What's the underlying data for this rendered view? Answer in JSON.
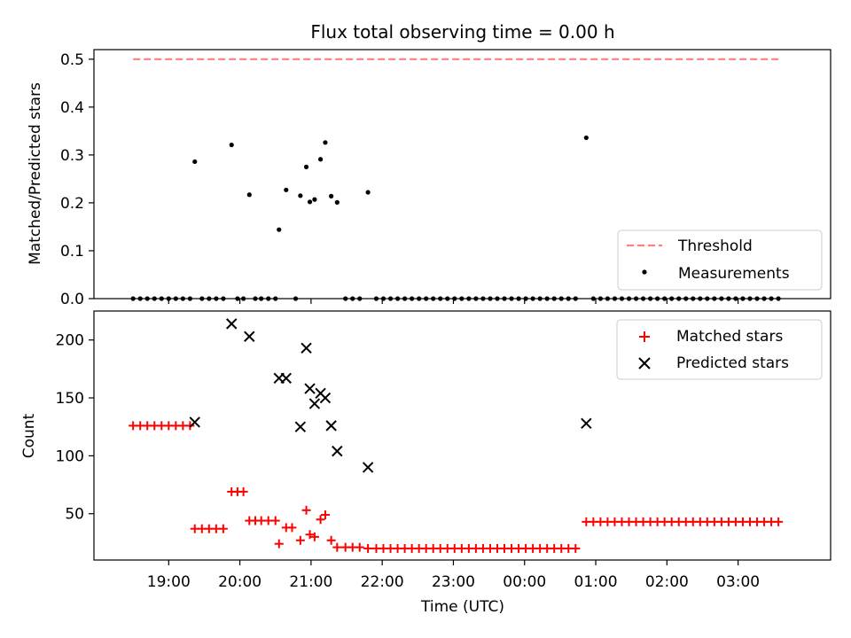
{
  "figure": {
    "title": "Flux total observing time = 0.00 h"
  },
  "chart_data": [
    {
      "type": "scatter",
      "panel": "top",
      "ylabel": "Matched/Predicted stars",
      "xlim_hours": [
        17.95,
        28.3
      ],
      "ylim": [
        0,
        0.52
      ],
      "yticks": [
        0.0,
        0.1,
        0.2,
        0.3,
        0.4,
        0.5
      ],
      "ytick_labels": [
        "0.0",
        "0.1",
        "0.2",
        "0.3",
        "0.4",
        "0.5"
      ],
      "legend_position": "lower-right",
      "series": [
        {
          "name": "Threshold",
          "kind": "dashed-line",
          "color": "#ff7f7f",
          "points": [
            {
              "x": "18:30",
              "y": 0.5
            },
            {
              "x": "03:35",
              "y": 0.5
            }
          ]
        },
        {
          "name": "Measurements",
          "kind": "dots",
          "color": "#000000",
          "points": [
            {
              "x": "19:22",
              "y": 0.286
            },
            {
              "x": "19:53",
              "y": 0.321
            },
            {
              "x": "20:08",
              "y": 0.217
            },
            {
              "x": "20:33",
              "y": 0.144
            },
            {
              "x": "20:39",
              "y": 0.227
            },
            {
              "x": "20:51",
              "y": 0.215
            },
            {
              "x": "20:56",
              "y": 0.275
            },
            {
              "x": "20:59",
              "y": 0.202
            },
            {
              "x": "21:03",
              "y": 0.207
            },
            {
              "x": "21:08",
              "y": 0.291
            },
            {
              "x": "21:12",
              "y": 0.326
            },
            {
              "x": "21:17",
              "y": 0.214
            },
            {
              "x": "21:22",
              "y": 0.201
            },
            {
              "x": "21:48",
              "y": 0.222
            },
            {
              "x": "00:52",
              "y": 0.336
            },
            {
              "x": "18:30",
              "y": 0
            },
            {
              "x": "18:36",
              "y": 0
            },
            {
              "x": "18:42",
              "y": 0
            },
            {
              "x": "18:48",
              "y": 0
            },
            {
              "x": "18:54",
              "y": 0
            },
            {
              "x": "19:00",
              "y": 0
            },
            {
              "x": "19:06",
              "y": 0
            },
            {
              "x": "19:12",
              "y": 0
            },
            {
              "x": "19:18",
              "y": 0
            },
            {
              "x": "19:28",
              "y": 0
            },
            {
              "x": "19:34",
              "y": 0
            },
            {
              "x": "19:40",
              "y": 0
            },
            {
              "x": "19:46",
              "y": 0
            },
            {
              "x": "19:58",
              "y": 0
            },
            {
              "x": "20:03",
              "y": 0
            },
            {
              "x": "20:13",
              "y": 0
            },
            {
              "x": "20:18",
              "y": 0
            },
            {
              "x": "20:24",
              "y": 0
            },
            {
              "x": "20:30",
              "y": 0
            },
            {
              "x": "20:47",
              "y": 0
            },
            {
              "x": "21:29",
              "y": 0
            },
            {
              "x": "21:35",
              "y": 0
            },
            {
              "x": "21:41",
              "y": 0
            },
            {
              "x": "21:55",
              "y": 0
            },
            {
              "x": "22:01",
              "y": 0
            },
            {
              "x": "22:07",
              "y": 0
            },
            {
              "x": "22:13",
              "y": 0
            },
            {
              "x": "22:19",
              "y": 0
            },
            {
              "x": "22:25",
              "y": 0
            },
            {
              "x": "22:31",
              "y": 0
            },
            {
              "x": "22:37",
              "y": 0
            },
            {
              "x": "22:43",
              "y": 0
            },
            {
              "x": "22:49",
              "y": 0
            },
            {
              "x": "22:55",
              "y": 0
            },
            {
              "x": "23:01",
              "y": 0
            },
            {
              "x": "23:07",
              "y": 0
            },
            {
              "x": "23:13",
              "y": 0
            },
            {
              "x": "23:19",
              "y": 0
            },
            {
              "x": "23:25",
              "y": 0
            },
            {
              "x": "23:31",
              "y": 0
            },
            {
              "x": "23:37",
              "y": 0
            },
            {
              "x": "23:43",
              "y": 0
            },
            {
              "x": "23:49",
              "y": 0
            },
            {
              "x": "23:55",
              "y": 0
            },
            {
              "x": "00:01",
              "y": 0
            },
            {
              "x": "00:07",
              "y": 0
            },
            {
              "x": "00:13",
              "y": 0
            },
            {
              "x": "00:19",
              "y": 0
            },
            {
              "x": "00:25",
              "y": 0
            },
            {
              "x": "00:31",
              "y": 0
            },
            {
              "x": "00:37",
              "y": 0
            },
            {
              "x": "00:43",
              "y": 0
            },
            {
              "x": "00:58",
              "y": 0
            },
            {
              "x": "01:04",
              "y": 0
            },
            {
              "x": "01:10",
              "y": 0
            },
            {
              "x": "01:16",
              "y": 0
            },
            {
              "x": "01:22",
              "y": 0
            },
            {
              "x": "01:28",
              "y": 0
            },
            {
              "x": "01:34",
              "y": 0
            },
            {
              "x": "01:40",
              "y": 0
            },
            {
              "x": "01:46",
              "y": 0
            },
            {
              "x": "01:52",
              "y": 0
            },
            {
              "x": "01:58",
              "y": 0
            },
            {
              "x": "02:04",
              "y": 0
            },
            {
              "x": "02:10",
              "y": 0
            },
            {
              "x": "02:16",
              "y": 0
            },
            {
              "x": "02:22",
              "y": 0
            },
            {
              "x": "02:28",
              "y": 0
            },
            {
              "x": "02:34",
              "y": 0
            },
            {
              "x": "02:40",
              "y": 0
            },
            {
              "x": "02:46",
              "y": 0
            },
            {
              "x": "02:52",
              "y": 0
            },
            {
              "x": "02:58",
              "y": 0
            },
            {
              "x": "03:04",
              "y": 0
            },
            {
              "x": "03:10",
              "y": 0
            },
            {
              "x": "03:16",
              "y": 0
            },
            {
              "x": "03:22",
              "y": 0
            },
            {
              "x": "03:28",
              "y": 0
            },
            {
              "x": "03:34",
              "y": 0
            }
          ]
        }
      ]
    },
    {
      "type": "scatter",
      "panel": "bottom",
      "xlabel": "Time (UTC)",
      "ylabel": "Count",
      "xlim_hours": [
        17.95,
        28.3
      ],
      "ylim": [
        10,
        225
      ],
      "xticks": [
        "19:00",
        "20:00",
        "21:00",
        "22:00",
        "23:00",
        "00:00",
        "01:00",
        "02:00",
        "03:00"
      ],
      "yticks": [
        50,
        100,
        150,
        200
      ],
      "ytick_labels": [
        "50",
        "100",
        "150",
        "200"
      ],
      "legend_position": "upper-right",
      "series": [
        {
          "name": "Matched stars",
          "kind": "plus",
          "color": "#ff0000",
          "points": [
            {
              "x": "18:30",
              "y": 126
            },
            {
              "x": "18:36",
              "y": 126
            },
            {
              "x": "18:42",
              "y": 126
            },
            {
              "x": "18:48",
              "y": 126
            },
            {
              "x": "18:54",
              "y": 126
            },
            {
              "x": "19:00",
              "y": 126
            },
            {
              "x": "19:06",
              "y": 126
            },
            {
              "x": "19:12",
              "y": 126
            },
            {
              "x": "19:18",
              "y": 126
            },
            {
              "x": "19:22",
              "y": 37
            },
            {
              "x": "19:28",
              "y": 37
            },
            {
              "x": "19:34",
              "y": 37
            },
            {
              "x": "19:40",
              "y": 37
            },
            {
              "x": "19:46",
              "y": 37
            },
            {
              "x": "19:53",
              "y": 69
            },
            {
              "x": "19:58",
              "y": 69
            },
            {
              "x": "20:03",
              "y": 69
            },
            {
              "x": "20:08",
              "y": 44
            },
            {
              "x": "20:13",
              "y": 44
            },
            {
              "x": "20:18",
              "y": 44
            },
            {
              "x": "20:24",
              "y": 44
            },
            {
              "x": "20:30",
              "y": 44
            },
            {
              "x": "20:33",
              "y": 24
            },
            {
              "x": "20:39",
              "y": 38
            },
            {
              "x": "20:44",
              "y": 38
            },
            {
              "x": "20:51",
              "y": 27
            },
            {
              "x": "20:56",
              "y": 53
            },
            {
              "x": "20:59",
              "y": 32
            },
            {
              "x": "21:03",
              "y": 30
            },
            {
              "x": "21:08",
              "y": 45
            },
            {
              "x": "21:12",
              "y": 49
            },
            {
              "x": "21:17",
              "y": 27
            },
            {
              "x": "21:22",
              "y": 21
            },
            {
              "x": "21:29",
              "y": 21
            },
            {
              "x": "21:35",
              "y": 21
            },
            {
              "x": "21:41",
              "y": 21
            },
            {
              "x": "21:48",
              "y": 20
            },
            {
              "x": "21:55",
              "y": 20
            },
            {
              "x": "22:01",
              "y": 20
            },
            {
              "x": "22:07",
              "y": 20
            },
            {
              "x": "22:13",
              "y": 20
            },
            {
              "x": "22:19",
              "y": 20
            },
            {
              "x": "22:25",
              "y": 20
            },
            {
              "x": "22:31",
              "y": 20
            },
            {
              "x": "22:37",
              "y": 20
            },
            {
              "x": "22:43",
              "y": 20
            },
            {
              "x": "22:49",
              "y": 20
            },
            {
              "x": "22:55",
              "y": 20
            },
            {
              "x": "23:01",
              "y": 20
            },
            {
              "x": "23:07",
              "y": 20
            },
            {
              "x": "23:13",
              "y": 20
            },
            {
              "x": "23:19",
              "y": 20
            },
            {
              "x": "23:25",
              "y": 20
            },
            {
              "x": "23:31",
              "y": 20
            },
            {
              "x": "23:37",
              "y": 20
            },
            {
              "x": "23:43",
              "y": 20
            },
            {
              "x": "23:49",
              "y": 20
            },
            {
              "x": "23:55",
              "y": 20
            },
            {
              "x": "00:01",
              "y": 20
            },
            {
              "x": "00:07",
              "y": 20
            },
            {
              "x": "00:13",
              "y": 20
            },
            {
              "x": "00:19",
              "y": 20
            },
            {
              "x": "00:25",
              "y": 20
            },
            {
              "x": "00:31",
              "y": 20
            },
            {
              "x": "00:37",
              "y": 20
            },
            {
              "x": "00:43",
              "y": 20
            },
            {
              "x": "00:52",
              "y": 43
            },
            {
              "x": "00:58",
              "y": 43
            },
            {
              "x": "01:04",
              "y": 43
            },
            {
              "x": "01:10",
              "y": 43
            },
            {
              "x": "01:16",
              "y": 43
            },
            {
              "x": "01:22",
              "y": 43
            },
            {
              "x": "01:28",
              "y": 43
            },
            {
              "x": "01:34",
              "y": 43
            },
            {
              "x": "01:40",
              "y": 43
            },
            {
              "x": "01:46",
              "y": 43
            },
            {
              "x": "01:52",
              "y": 43
            },
            {
              "x": "01:58",
              "y": 43
            },
            {
              "x": "02:04",
              "y": 43
            },
            {
              "x": "02:10",
              "y": 43
            },
            {
              "x": "02:16",
              "y": 43
            },
            {
              "x": "02:22",
              "y": 43
            },
            {
              "x": "02:28",
              "y": 43
            },
            {
              "x": "02:34",
              "y": 43
            },
            {
              "x": "02:40",
              "y": 43
            },
            {
              "x": "02:46",
              "y": 43
            },
            {
              "x": "02:52",
              "y": 43
            },
            {
              "x": "02:58",
              "y": 43
            },
            {
              "x": "03:04",
              "y": 43
            },
            {
              "x": "03:10",
              "y": 43
            },
            {
              "x": "03:16",
              "y": 43
            },
            {
              "x": "03:22",
              "y": 43
            },
            {
              "x": "03:28",
              "y": 43
            },
            {
              "x": "03:34",
              "y": 43
            }
          ]
        },
        {
          "name": "Predicted stars",
          "kind": "x",
          "color": "#000000",
          "points": [
            {
              "x": "19:22",
              "y": 129
            },
            {
              "x": "19:53",
              "y": 214
            },
            {
              "x": "20:08",
              "y": 203
            },
            {
              "x": "20:33",
              "y": 167
            },
            {
              "x": "20:39",
              "y": 167
            },
            {
              "x": "20:51",
              "y": 125
            },
            {
              "x": "20:56",
              "y": 193
            },
            {
              "x": "20:59",
              "y": 158
            },
            {
              "x": "21:03",
              "y": 145
            },
            {
              "x": "21:08",
              "y": 154
            },
            {
              "x": "21:12",
              "y": 150
            },
            {
              "x": "21:17",
              "y": 126
            },
            {
              "x": "21:22",
              "y": 104
            },
            {
              "x": "21:48",
              "y": 90
            },
            {
              "x": "00:52",
              "y": 128
            }
          ]
        }
      ]
    }
  ]
}
